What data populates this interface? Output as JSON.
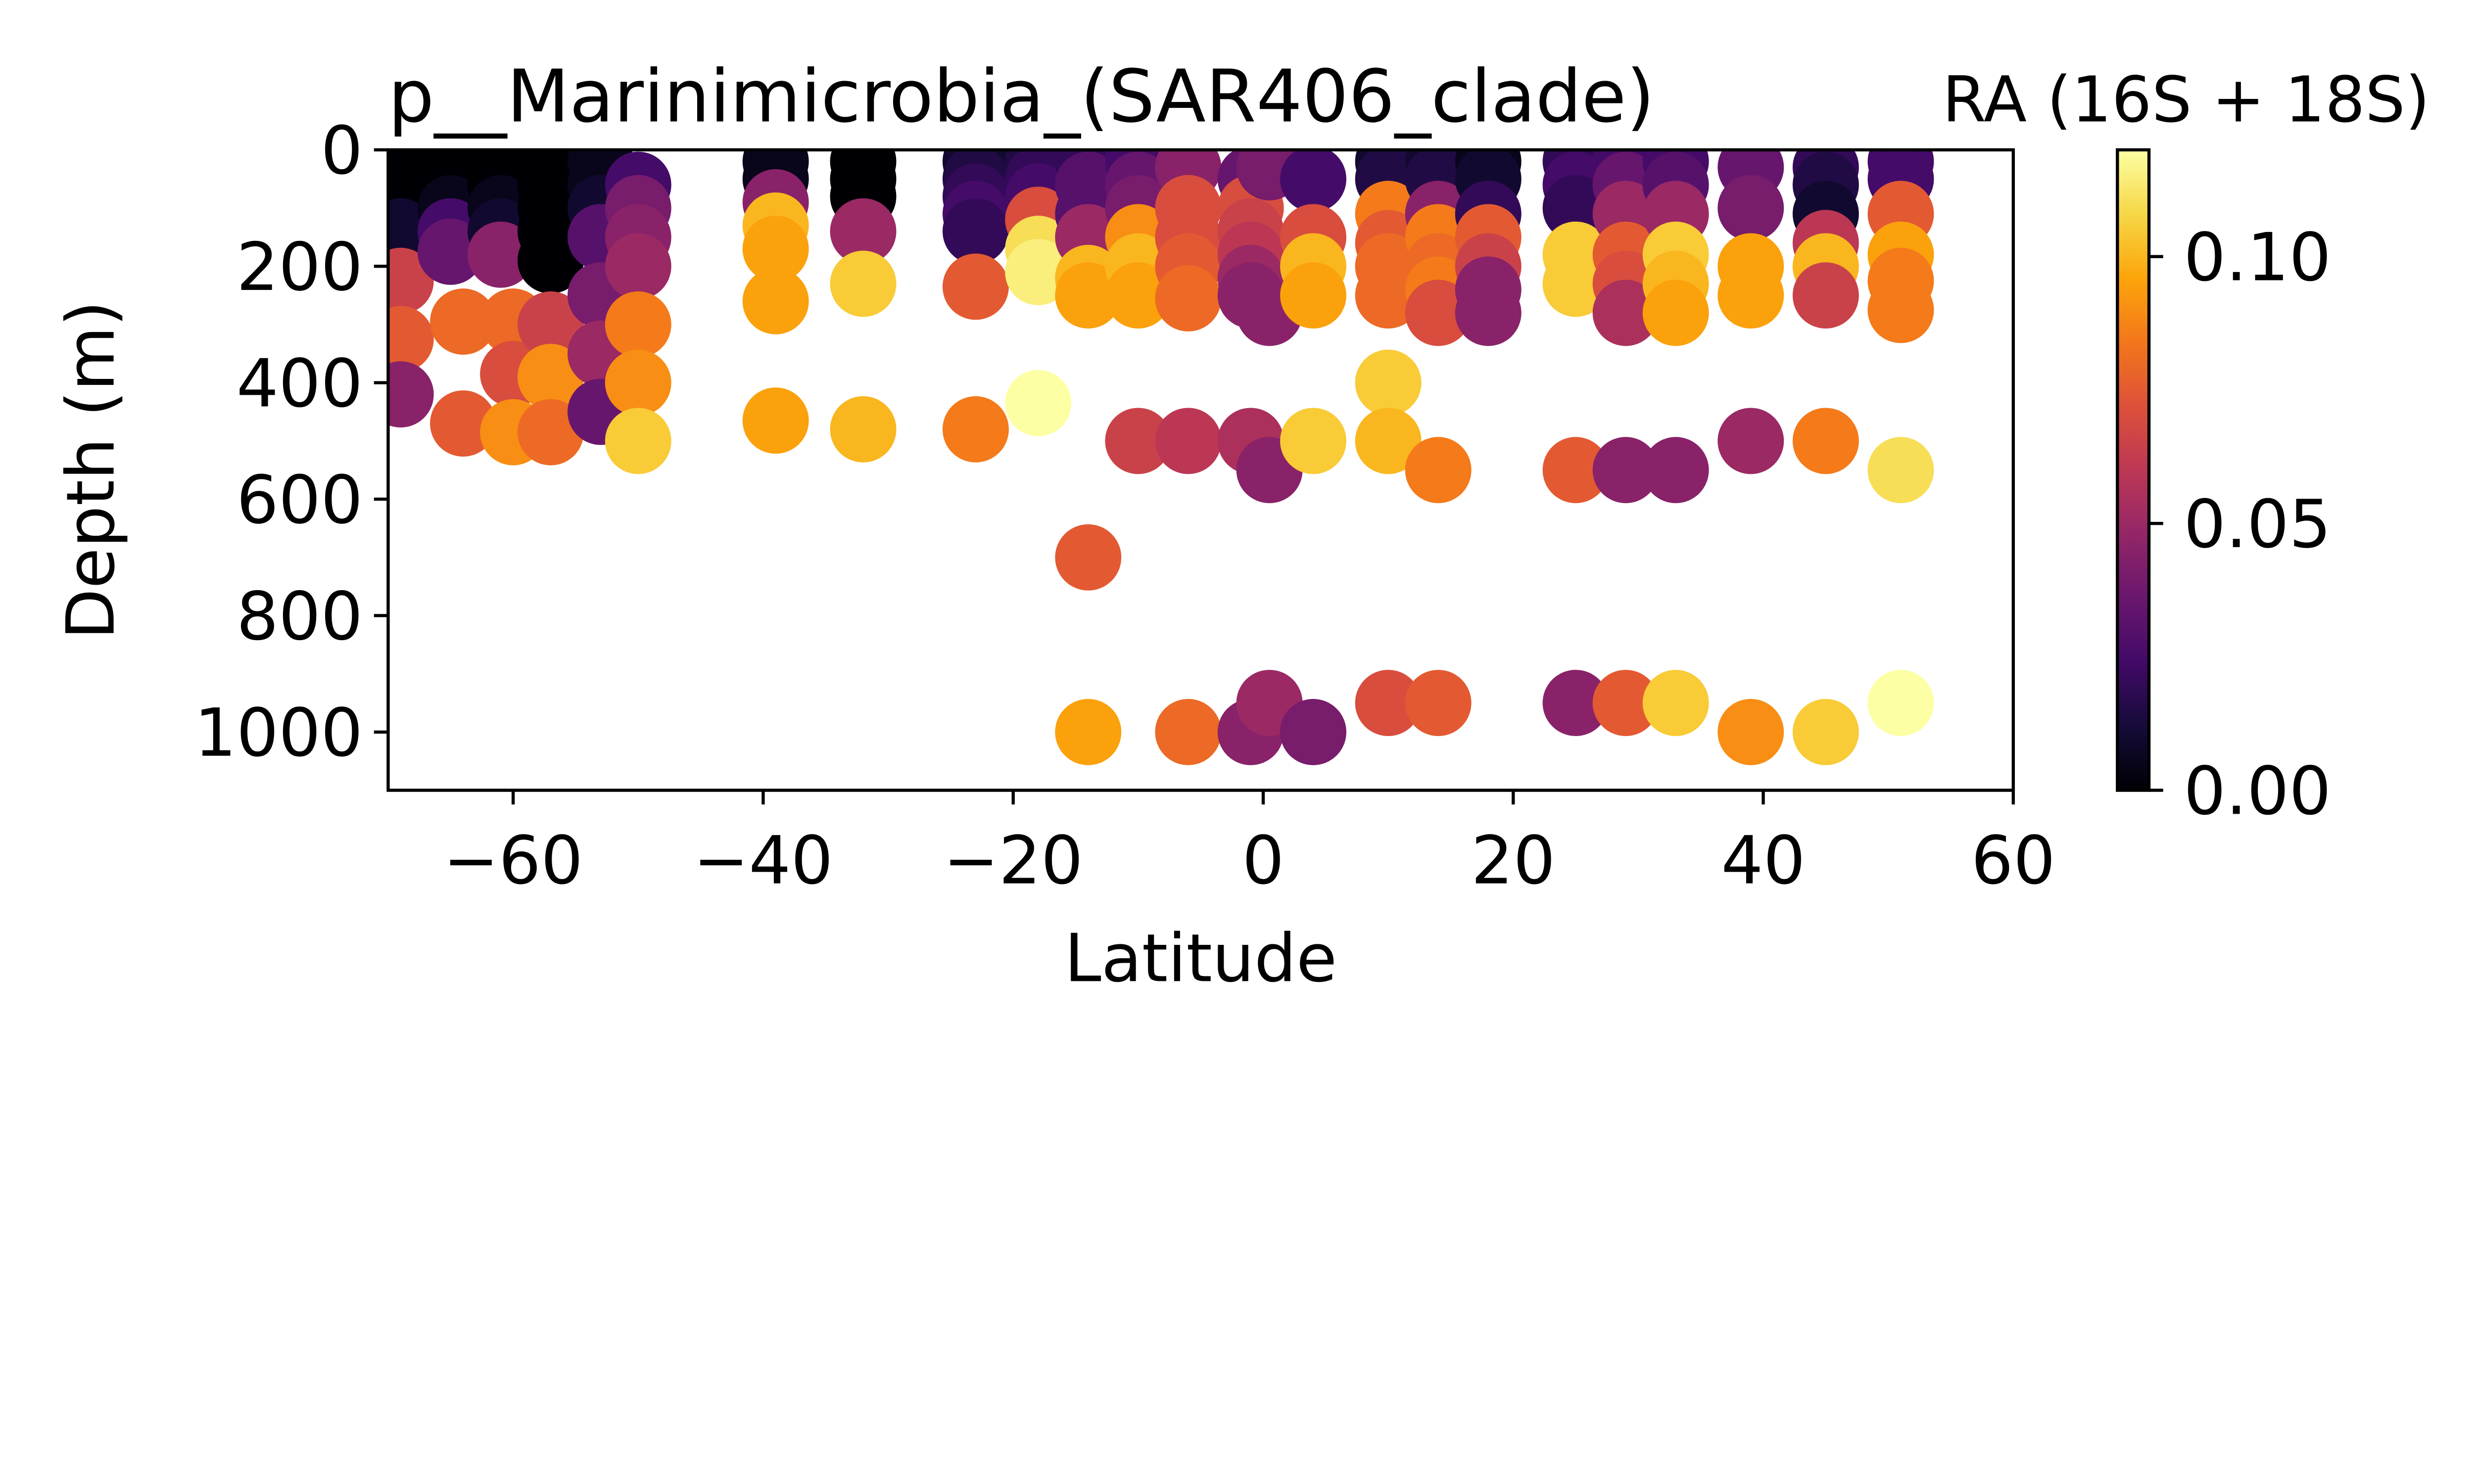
{
  "chart_data": {
    "type": "scatter",
    "title": "p__Marinimicrobia_(SAR406_clade)",
    "xlabel": "Latitude",
    "ylabel": "Depth (m)",
    "xlim": [
      -70,
      60
    ],
    "ylim": [
      1100,
      0
    ],
    "y_inverted": true,
    "xticks": [
      -60,
      -40,
      -20,
      0,
      20,
      40,
      60
    ],
    "xtick_labels": [
      "−60",
      "−40",
      "−20",
      "0",
      "20",
      "40",
      "60"
    ],
    "yticks": [
      0,
      200,
      400,
      600,
      800,
      1000
    ],
    "ytick_labels": [
      "0",
      "200",
      "400",
      "600",
      "800",
      "1000"
    ],
    "grid": false,
    "legend": "none",
    "colormap": "inferno",
    "colorbar": {
      "label": "RA (16S + 18S)",
      "range": [
        0,
        0.12
      ],
      "ticks": [
        0,
        0.05,
        0.1
      ],
      "tick_labels": [
        "0.00",
        "0.05",
        "0.10"
      ]
    },
    "points": [
      {
        "x": -69,
        "y": 20,
        "c": 0.0
      },
      {
        "x": -69,
        "y": 60,
        "c": 0.0
      },
      {
        "x": -69,
        "y": 100,
        "c": 0.0
      },
      {
        "x": -69,
        "y": 140,
        "c": 0.01
      },
      {
        "x": -69,
        "y": 225,
        "c": 0.065
      },
      {
        "x": -69,
        "y": 325,
        "c": 0.075
      },
      {
        "x": -69,
        "y": 420,
        "c": 0.045
      },
      {
        "x": -65,
        "y": 20,
        "c": 0.0
      },
      {
        "x": -65,
        "y": 60,
        "c": 0.0
      },
      {
        "x": -65,
        "y": 100,
        "c": 0.005
      },
      {
        "x": -65,
        "y": 140,
        "c": 0.025
      },
      {
        "x": -65,
        "y": 175,
        "c": 0.035
      },
      {
        "x": -64,
        "y": 295,
        "c": 0.08
      },
      {
        "x": -64,
        "y": 470,
        "c": 0.075
      },
      {
        "x": -61,
        "y": 20,
        "c": 0.0
      },
      {
        "x": -61,
        "y": 60,
        "c": 0.0
      },
      {
        "x": -61,
        "y": 100,
        "c": 0.005
      },
      {
        "x": -61,
        "y": 140,
        "c": 0.01
      },
      {
        "x": -61,
        "y": 180,
        "c": 0.045
      },
      {
        "x": -60,
        "y": 295,
        "c": 0.08
      },
      {
        "x": -60,
        "y": 385,
        "c": 0.07
      },
      {
        "x": -60,
        "y": 485,
        "c": 0.09
      },
      {
        "x": -57,
        "y": 20,
        "c": 0.0
      },
      {
        "x": -57,
        "y": 60,
        "c": 0.0
      },
      {
        "x": -57,
        "y": 100,
        "c": 0.0
      },
      {
        "x": -57,
        "y": 140,
        "c": 0.0
      },
      {
        "x": -57,
        "y": 190,
        "c": 0.0
      },
      {
        "x": -57,
        "y": 300,
        "c": 0.065
      },
      {
        "x": -57,
        "y": 390,
        "c": 0.09
      },
      {
        "x": -57,
        "y": 485,
        "c": 0.08
      },
      {
        "x": -53,
        "y": 20,
        "c": 0.005
      },
      {
        "x": -53,
        "y": 60,
        "c": 0.005
      },
      {
        "x": -53,
        "y": 100,
        "c": 0.01
      },
      {
        "x": -53,
        "y": 150,
        "c": 0.03
      },
      {
        "x": -53,
        "y": 250,
        "c": 0.04
      },
      {
        "x": -53,
        "y": 350,
        "c": 0.05
      },
      {
        "x": -53,
        "y": 450,
        "c": 0.035
      },
      {
        "x": -50,
        "y": 60,
        "c": 0.025
      },
      {
        "x": -50,
        "y": 100,
        "c": 0.04
      },
      {
        "x": -50,
        "y": 150,
        "c": 0.045
      },
      {
        "x": -50,
        "y": 200,
        "c": 0.05
      },
      {
        "x": -50,
        "y": 300,
        "c": 0.085
      },
      {
        "x": -50,
        "y": 400,
        "c": 0.09
      },
      {
        "x": -50,
        "y": 500,
        "c": 0.105
      },
      {
        "x": -39,
        "y": 20,
        "c": 0.005
      },
      {
        "x": -39,
        "y": 50,
        "c": 0.005
      },
      {
        "x": -39,
        "y": 90,
        "c": 0.045
      },
      {
        "x": -39,
        "y": 130,
        "c": 0.1
      },
      {
        "x": -39,
        "y": 170,
        "c": 0.095
      },
      {
        "x": -39,
        "y": 260,
        "c": 0.095
      },
      {
        "x": -39,
        "y": 465,
        "c": 0.095
      },
      {
        "x": -32,
        "y": 20,
        "c": 0.0
      },
      {
        "x": -32,
        "y": 50,
        "c": 0.0
      },
      {
        "x": -32,
        "y": 80,
        "c": 0.0
      },
      {
        "x": -32,
        "y": 140,
        "c": 0.05
      },
      {
        "x": -32,
        "y": 230,
        "c": 0.105
      },
      {
        "x": -32,
        "y": 480,
        "c": 0.1
      },
      {
        "x": -23,
        "y": 20,
        "c": 0.01
      },
      {
        "x": -23,
        "y": 50,
        "c": 0.015
      },
      {
        "x": -23,
        "y": 80,
        "c": 0.02
      },
      {
        "x": -23,
        "y": 110,
        "c": 0.025
      },
      {
        "x": -23,
        "y": 140,
        "c": 0.02
      },
      {
        "x": -23,
        "y": 235,
        "c": 0.075
      },
      {
        "x": -23,
        "y": 480,
        "c": 0.085
      },
      {
        "x": -18,
        "y": 20,
        "c": 0.015
      },
      {
        "x": -18,
        "y": 50,
        "c": 0.02
      },
      {
        "x": -18,
        "y": 80,
        "c": 0.025
      },
      {
        "x": -18,
        "y": 120,
        "c": 0.07
      },
      {
        "x": -18,
        "y": 170,
        "c": 0.11
      },
      {
        "x": -18,
        "y": 210,
        "c": 0.115
      },
      {
        "x": -18,
        "y": 435,
        "c": 0.12
      },
      {
        "x": -14,
        "y": 20,
        "c": 0.02
      },
      {
        "x": -14,
        "y": 60,
        "c": 0.03
      },
      {
        "x": -14,
        "y": 110,
        "c": 0.03
      },
      {
        "x": -14,
        "y": 150,
        "c": 0.05
      },
      {
        "x": -14,
        "y": 220,
        "c": 0.1
      },
      {
        "x": -14,
        "y": 250,
        "c": 0.095
      },
      {
        "x": -14,
        "y": 700,
        "c": 0.075
      },
      {
        "x": -14,
        "y": 1000,
        "c": 0.095
      },
      {
        "x": -10,
        "y": 20,
        "c": 0.025
      },
      {
        "x": -10,
        "y": 60,
        "c": 0.035
      },
      {
        "x": -10,
        "y": 100,
        "c": 0.04
      },
      {
        "x": -10,
        "y": 150,
        "c": 0.09
      },
      {
        "x": -10,
        "y": 200,
        "c": 0.1
      },
      {
        "x": -10,
        "y": 250,
        "c": 0.095
      },
      {
        "x": -10,
        "y": 500,
        "c": 0.065
      },
      {
        "x": -6,
        "y": 30,
        "c": 0.045
      },
      {
        "x": -6,
        "y": 100,
        "c": 0.07
      },
      {
        "x": -6,
        "y": 150,
        "c": 0.07
      },
      {
        "x": -6,
        "y": 200,
        "c": 0.075
      },
      {
        "x": -6,
        "y": 255,
        "c": 0.08
      },
      {
        "x": -6,
        "y": 500,
        "c": 0.06
      },
      {
        "x": -6,
        "y": 1000,
        "c": 0.08
      },
      {
        "x": -1,
        "y": 50,
        "c": 0.035
      },
      {
        "x": -1,
        "y": 100,
        "c": 0.07
      },
      {
        "x": -1,
        "y": 140,
        "c": 0.065
      },
      {
        "x": -1,
        "y": 180,
        "c": 0.06
      },
      {
        "x": -1,
        "y": 220,
        "c": 0.05
      },
      {
        "x": -1,
        "y": 250,
        "c": 0.045
      },
      {
        "x": -1,
        "y": 500,
        "c": 0.055
      },
      {
        "x": -1,
        "y": 1000,
        "c": 0.045
      },
      {
        "x": 0.5,
        "y": 30,
        "c": 0.04
      },
      {
        "x": 0.5,
        "y": 280,
        "c": 0.045
      },
      {
        "x": 0.5,
        "y": 550,
        "c": 0.045
      },
      {
        "x": 0.5,
        "y": 950,
        "c": 0.05
      },
      {
        "x": 4,
        "y": 50,
        "c": 0.025
      },
      {
        "x": 4,
        "y": 150,
        "c": 0.07
      },
      {
        "x": 4,
        "y": 200,
        "c": 0.1
      },
      {
        "x": 4,
        "y": 250,
        "c": 0.095
      },
      {
        "x": 4,
        "y": 500,
        "c": 0.105
      },
      {
        "x": 4,
        "y": 1000,
        "c": 0.04
      },
      {
        "x": 10,
        "y": 20,
        "c": 0.01
      },
      {
        "x": 10,
        "y": 50,
        "c": 0.015
      },
      {
        "x": 10,
        "y": 110,
        "c": 0.085
      },
      {
        "x": 10,
        "y": 160,
        "c": 0.075
      },
      {
        "x": 10,
        "y": 200,
        "c": 0.08
      },
      {
        "x": 10,
        "y": 250,
        "c": 0.08
      },
      {
        "x": 10,
        "y": 400,
        "c": 0.105
      },
      {
        "x": 10,
        "y": 500,
        "c": 0.1
      },
      {
        "x": 10,
        "y": 950,
        "c": 0.07
      },
      {
        "x": 14,
        "y": 20,
        "c": 0.01
      },
      {
        "x": 14,
        "y": 50,
        "c": 0.015
      },
      {
        "x": 14,
        "y": 110,
        "c": 0.045
      },
      {
        "x": 14,
        "y": 150,
        "c": 0.085
      },
      {
        "x": 14,
        "y": 200,
        "c": 0.08
      },
      {
        "x": 14,
        "y": 240,
        "c": 0.085
      },
      {
        "x": 14,
        "y": 280,
        "c": 0.07
      },
      {
        "x": 14,
        "y": 550,
        "c": 0.085
      },
      {
        "x": 14,
        "y": 950,
        "c": 0.075
      },
      {
        "x": 18,
        "y": 20,
        "c": 0.005
      },
      {
        "x": 18,
        "y": 50,
        "c": 0.01
      },
      {
        "x": 18,
        "y": 110,
        "c": 0.02
      },
      {
        "x": 18,
        "y": 150,
        "c": 0.075
      },
      {
        "x": 18,
        "y": 200,
        "c": 0.065
      },
      {
        "x": 18,
        "y": 240,
        "c": 0.045
      },
      {
        "x": 18,
        "y": 280,
        "c": 0.045
      },
      {
        "x": 25,
        "y": 20,
        "c": 0.02
      },
      {
        "x": 25,
        "y": 60,
        "c": 0.025
      },
      {
        "x": 25,
        "y": 100,
        "c": 0.02
      },
      {
        "x": 25,
        "y": 180,
        "c": 0.105
      },
      {
        "x": 25,
        "y": 230,
        "c": 0.105
      },
      {
        "x": 25,
        "y": 550,
        "c": 0.075
      },
      {
        "x": 25,
        "y": 950,
        "c": 0.045
      },
      {
        "x": 29,
        "y": 20,
        "c": 0.025
      },
      {
        "x": 29,
        "y": 60,
        "c": 0.035
      },
      {
        "x": 29,
        "y": 110,
        "c": 0.05
      },
      {
        "x": 29,
        "y": 180,
        "c": 0.075
      },
      {
        "x": 29,
        "y": 230,
        "c": 0.07
      },
      {
        "x": 29,
        "y": 280,
        "c": 0.055
      },
      {
        "x": 29,
        "y": 550,
        "c": 0.045
      },
      {
        "x": 29,
        "y": 950,
        "c": 0.075
      },
      {
        "x": 33,
        "y": 20,
        "c": 0.025
      },
      {
        "x": 33,
        "y": 60,
        "c": 0.03
      },
      {
        "x": 33,
        "y": 110,
        "c": 0.05
      },
      {
        "x": 33,
        "y": 180,
        "c": 0.105
      },
      {
        "x": 33,
        "y": 230,
        "c": 0.1
      },
      {
        "x": 33,
        "y": 280,
        "c": 0.095
      },
      {
        "x": 33,
        "y": 550,
        "c": 0.045
      },
      {
        "x": 33,
        "y": 950,
        "c": 0.105
      },
      {
        "x": 39,
        "y": 30,
        "c": 0.035
      },
      {
        "x": 39,
        "y": 100,
        "c": 0.04
      },
      {
        "x": 39,
        "y": 200,
        "c": 0.095
      },
      {
        "x": 39,
        "y": 250,
        "c": 0.095
      },
      {
        "x": 39,
        "y": 500,
        "c": 0.05
      },
      {
        "x": 39,
        "y": 1000,
        "c": 0.09
      },
      {
        "x": 45,
        "y": 30,
        "c": 0.02
      },
      {
        "x": 45,
        "y": 60,
        "c": 0.015
      },
      {
        "x": 45,
        "y": 110,
        "c": 0.01
      },
      {
        "x": 45,
        "y": 160,
        "c": 0.06
      },
      {
        "x": 45,
        "y": 200,
        "c": 0.1
      },
      {
        "x": 45,
        "y": 250,
        "c": 0.065
      },
      {
        "x": 45,
        "y": 500,
        "c": 0.085
      },
      {
        "x": 45,
        "y": 1000,
        "c": 0.105
      },
      {
        "x": 51,
        "y": 20,
        "c": 0.025
      },
      {
        "x": 51,
        "y": 50,
        "c": 0.025
      },
      {
        "x": 51,
        "y": 110,
        "c": 0.075
      },
      {
        "x": 51,
        "y": 180,
        "c": 0.095
      },
      {
        "x": 51,
        "y": 225,
        "c": 0.085
      },
      {
        "x": 51,
        "y": 275,
        "c": 0.085
      },
      {
        "x": 51,
        "y": 550,
        "c": 0.11
      },
      {
        "x": 51,
        "y": 950,
        "c": 0.12
      }
    ]
  }
}
